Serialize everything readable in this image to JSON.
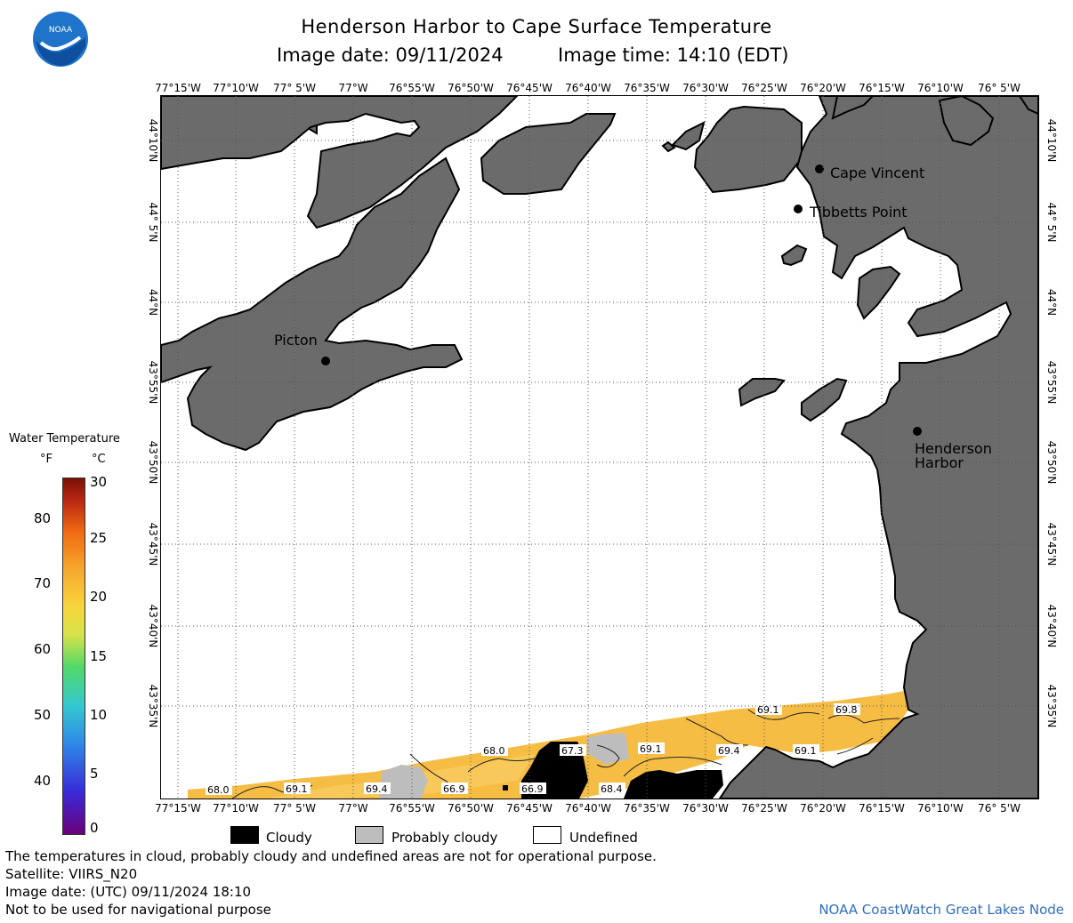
{
  "header": {
    "title": "Henderson Harbor to Cape Surface Temperature",
    "date_label": "Image date: 09/11/2024",
    "time_label": "Image time: 14:10 (EDT)"
  },
  "logo": {
    "text": "NOAA"
  },
  "map": {
    "lon_labels": [
      "77°15'W",
      "77°10'W",
      "77° 5'W",
      "77°W",
      "76°55'W",
      "76°50'W",
      "76°45'W",
      "76°40'W",
      "76°35'W",
      "76°30'W",
      "76°25'W",
      "76°20'W",
      "76°15'W",
      "76°10'W",
      "76° 5'W"
    ],
    "lat_labels": [
      "44°10'N",
      "44° 5'N",
      "44°N",
      "43°55'N",
      "43°50'N",
      "43°45'N",
      "43°40'N",
      "43°35'N"
    ],
    "places": [
      "Cape Vincent",
      "Tibbetts Point",
      "Picton",
      "Henderson",
      "Harbor"
    ],
    "contour_labels": [
      "68.0",
      "69.1",
      "69.4",
      "66.9",
      "68.0",
      "66.9",
      "67.3",
      "68.4",
      "69.1",
      "69.4",
      "69.1",
      "69.8",
      "69.1"
    ],
    "colors": {
      "land": "#6b6b6b",
      "water_warm": "#f6bd45",
      "cloud": "#000000",
      "probably_cloudy": "#bdbdbd"
    }
  },
  "colorbar": {
    "title": "Water Temperature",
    "unit_f": "°F",
    "unit_c": "°C",
    "f_ticks": [
      "80",
      "70",
      "60",
      "50",
      "40"
    ],
    "c_ticks": [
      "30",
      "25",
      "20",
      "15",
      "10",
      "5",
      "0"
    ]
  },
  "legend": {
    "cloudy": "Cloudy",
    "probably_cloudy": "Probably cloudy",
    "undefined": "Undefined"
  },
  "footer": {
    "line1": "The temperatures in cloud, probably cloudy and undefined areas are not for operational purpose.",
    "line2": "Satellite: VIIRS_N20",
    "line3": "Image date: (UTC) 09/11/2024  18:10",
    "line4": "Not to be used for navigational purpose",
    "credit": "NOAA CoastWatch Great Lakes Node"
  }
}
